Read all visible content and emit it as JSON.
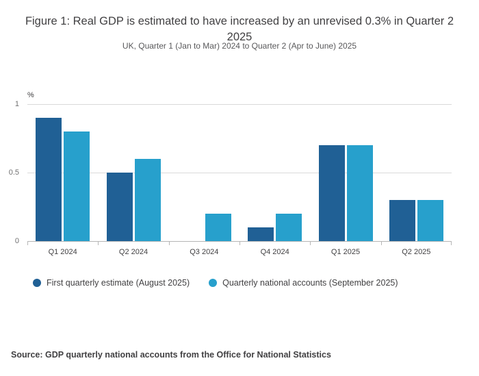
{
  "chart": {
    "title": "Figure 1: Real GDP is estimated to have increased by an unrevised 0.3% in Quarter 2 2025",
    "subtitle": "UK, Quarter 1 (Jan to Mar) 2024 to Quarter 2 (Apr to June) 2025",
    "unit_label": "%",
    "source": "Source: GDP quarterly national accounts from the Office for National Statistics"
  },
  "chart_data": {
    "type": "bar",
    "title": "Figure 1: Real GDP is estimated to have increased by an unrevised 0.3% in Quarter 2 2025",
    "subtitle": "UK, Quarter 1 (Jan to Mar) 2024 to Quarter 2 (Apr to June) 2025",
    "categories": [
      "Q1 2024",
      "Q2 2024",
      "Q3 2024",
      "Q4 2024",
      "Q1 2025",
      "Q2 2025"
    ],
    "series": [
      {
        "name": "First quarterly estimate (August 2025)",
        "color": "#206095",
        "values": [
          0.9,
          0.5,
          0.0,
          0.1,
          0.7,
          0.3
        ]
      },
      {
        "name": "Quarterly national accounts (September 2025)",
        "color": "#27a0cc",
        "values": [
          0.8,
          0.6,
          0.2,
          0.2,
          0.7,
          0.3
        ]
      }
    ],
    "xlabel": "",
    "ylabel": "%",
    "ylim": [
      0,
      1
    ],
    "yticks": [
      0,
      0.5,
      1
    ],
    "ytick_labels": [
      "0",
      "0.5",
      "1"
    ],
    "grid": true,
    "legend_position": "bottom"
  }
}
